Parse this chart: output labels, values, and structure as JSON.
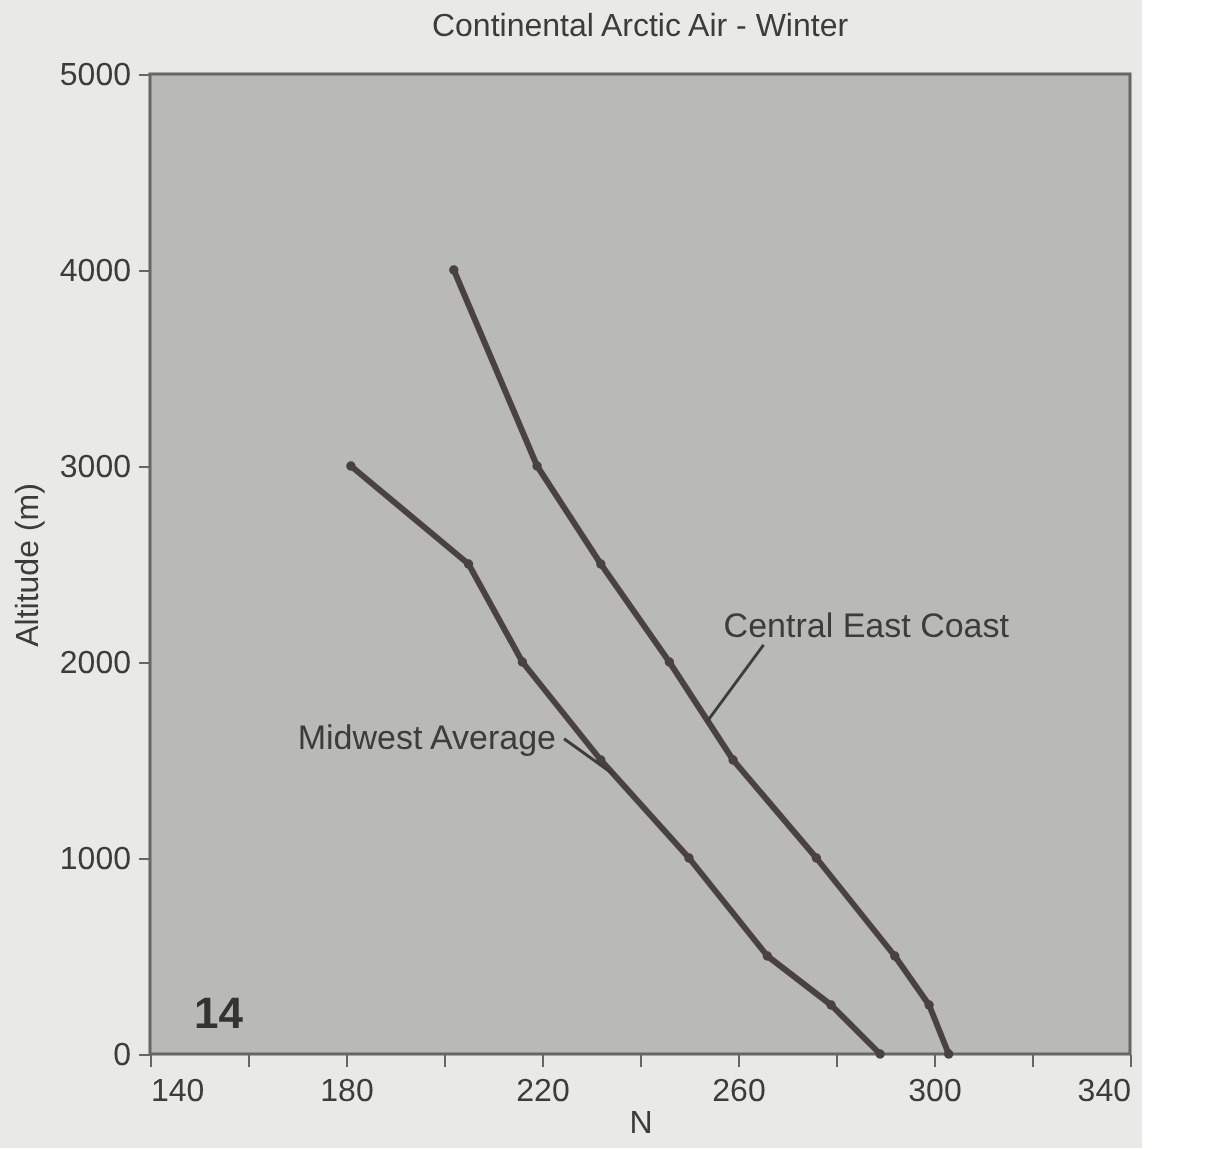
{
  "chart_data": {
    "type": "line",
    "title": "Continental Arctic Air - Winter",
    "xlabel": "N",
    "ylabel": "Altitude (m)",
    "xlim": [
      140,
      340
    ],
    "ylim": [
      0,
      5000
    ],
    "xticks": [
      140,
      {
        "value": 160,
        "label": null
      },
      180,
      {
        "value": 200,
        "label": null
      },
      220,
      {
        "value": 240,
        "label": null
      },
      260,
      {
        "value": 280,
        "label": null
      },
      300,
      {
        "value": 320,
        "label": null
      },
      340
    ],
    "yticks": [
      0,
      1000,
      2000,
      3000,
      4000,
      5000
    ],
    "grid": false,
    "marker": "circle",
    "line_style": "solid",
    "series": [
      {
        "name": "Central East Coast",
        "color": "#4a4242",
        "x": [
          303,
          299,
          292,
          276,
          259,
          246,
          232,
          219,
          202
        ],
        "values": [
          0,
          250,
          500,
          1000,
          1500,
          2000,
          2500,
          3000,
          4000
        ]
      },
      {
        "name": "Midwest Average",
        "color": "#4a4242",
        "x": [
          289,
          279,
          266,
          250,
          232,
          216,
          205,
          181
        ],
        "values": [
          0,
          250,
          500,
          1000,
          1500,
          2000,
          2500,
          3000
        ]
      }
    ],
    "annotations": [
      "14"
    ]
  }
}
